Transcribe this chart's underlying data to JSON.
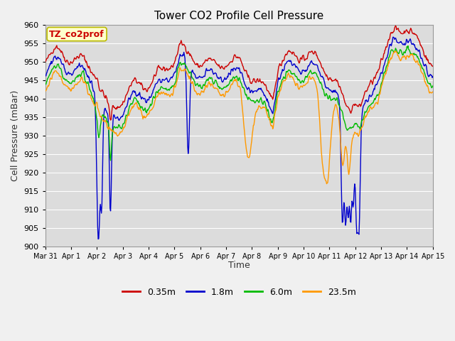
{
  "title": "Tower CO2 Profile Cell Pressure",
  "ylabel": "Cell Pressure (mBar)",
  "xlabel": "Time",
  "annotation": "TZ_co2prof",
  "ylim": [
    900,
    960
  ],
  "yticks": [
    900,
    905,
    910,
    915,
    920,
    925,
    930,
    935,
    940,
    945,
    950,
    955,
    960
  ],
  "xtick_labels": [
    "Mar 31",
    "Apr 1",
    "Apr 2",
    "Apr 3",
    "Apr 4",
    "Apr 5",
    "Apr 6",
    "Apr 7",
    "Apr 8",
    "Apr 9",
    "Apr 10",
    "Apr 11",
    "Apr 12",
    "Apr 13",
    "Apr 14",
    "Apr 15"
  ],
  "series_colors": [
    "#cc0000",
    "#0000cc",
    "#00bb00",
    "#ff9900"
  ],
  "series_labels": [
    "0.35m",
    "1.8m",
    "6.0m",
    "23.5m"
  ],
  "line_width": 1.0,
  "plot_bg_color": "#dcdcdc",
  "grid_color": "#ffffff",
  "annotation_bg": "#ffffcc",
  "annotation_border": "#bbbb00",
  "annotation_text_color": "#cc0000",
  "fig_bg_color": "#f0f0f0"
}
